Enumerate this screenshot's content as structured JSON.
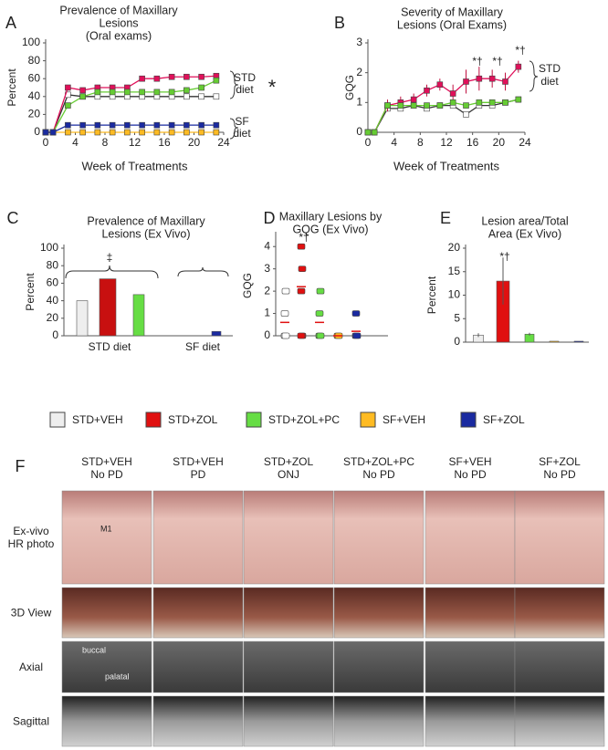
{
  "chart_data": [
    {
      "type": "line",
      "panel": "A",
      "title": [
        "Prevalence of Maxillary",
        "Lesions",
        "(Oral exams)"
      ],
      "xlabel": "Week of Treatments",
      "ylabel": "Percent",
      "x": [
        0,
        1,
        3,
        5,
        7,
        9,
        11,
        13,
        15,
        17,
        19,
        21,
        23
      ],
      "xlim": [
        0,
        24
      ],
      "xticks": [
        0,
        4,
        8,
        12,
        16,
        20,
        24
      ],
      "ylim": [
        0,
        100
      ],
      "yticks": [
        0,
        20,
        40,
        60,
        80,
        100
      ],
      "series": [
        {
          "color": "#ffffff",
          "values": [
            0,
            0,
            42,
            40,
            40,
            40,
            40,
            40,
            40,
            40,
            40,
            40,
            40
          ]
        },
        {
          "color": "#e0105a",
          "values": [
            0,
            0,
            50,
            47,
            50,
            50,
            50,
            60,
            60,
            62,
            62,
            62,
            63
          ]
        },
        {
          "color": "#66cc33",
          "values": [
            0,
            0,
            30,
            40,
            45,
            45,
            45,
            45,
            45,
            45,
            47,
            50,
            58
          ]
        },
        {
          "color": "#ffbb22",
          "values": [
            0,
            0,
            0,
            0,
            0,
            0,
            0,
            0,
            0,
            0,
            0,
            0,
            0
          ]
        },
        {
          "color": "#1a2aa0",
          "values": [
            0,
            0,
            8,
            8,
            8,
            8,
            8,
            8,
            8,
            8,
            8,
            8,
            8
          ]
        }
      ],
      "annotations": [
        "STD",
        "diet",
        "*",
        "SF",
        "diet"
      ]
    },
    {
      "type": "line",
      "panel": "B",
      "title": [
        "Severity of Maxillary",
        "Lesions (Oral Exams)"
      ],
      "xlabel": "Week of Treatments",
      "ylabel": "GQG",
      "x": [
        0,
        1,
        3,
        5,
        7,
        9,
        11,
        13,
        15,
        17,
        19,
        21,
        23
      ],
      "xlim": [
        0,
        24
      ],
      "xticks": [
        0,
        4,
        8,
        12,
        16,
        20,
        24
      ],
      "ylim": [
        0,
        3
      ],
      "yticks": [
        0,
        1,
        2,
        3
      ],
      "series": [
        {
          "color": "#ffffff",
          "values": [
            0,
            0,
            0.8,
            0.8,
            0.9,
            0.8,
            0.9,
            0.9,
            0.6,
            0.9,
            0.9,
            1.0,
            1.1
          ]
        },
        {
          "color": "#e0105a",
          "values": [
            0,
            0,
            0.9,
            1.0,
            1.1,
            1.4,
            1.6,
            1.3,
            1.7,
            1.8,
            1.8,
            1.7,
            2.2
          ],
          "errors": [
            0,
            0.1,
            0.2,
            0.2,
            0.2,
            0.2,
            0.2,
            0.3,
            0.4,
            0.4,
            0.3,
            0.3,
            0.2
          ]
        },
        {
          "color": "#66cc33",
          "values": [
            0,
            0,
            0.9,
            0.9,
            0.9,
            0.9,
            0.9,
            1.0,
            0.9,
            1.0,
            1.0,
            1.0,
            1.1
          ]
        }
      ],
      "annotations": [
        "*†",
        "*†",
        "*†",
        "STD",
        "diet"
      ]
    },
    {
      "type": "bar",
      "panel": "C",
      "title": [
        "Prevalence of Maxillary",
        "Lesions (Ex Vivo)"
      ],
      "ylabel": "Percent",
      "ylim": [
        0,
        100
      ],
      "yticks": [
        0,
        20,
        40,
        60,
        80,
        100
      ],
      "values": [
        40,
        65,
        47,
        0,
        5
      ],
      "colors": [
        "#eeeeee",
        "#c81010",
        "#66dd44",
        "#ffbb22",
        "#1a2aa0"
      ],
      "group_labels": [
        "STD diet",
        "SF diet"
      ],
      "annotations": [
        "‡"
      ]
    },
    {
      "type": "scatter",
      "panel": "D",
      "title": [
        "Maxillary Lesions by",
        "GQG (Ex Vivo)"
      ],
      "ylabel": "GQG",
      "ylim": [
        0,
        4.5
      ],
      "yticks": [
        0,
        1,
        2,
        3,
        4
      ],
      "series": [
        {
          "color": "#ffffff",
          "values": [
            0,
            0,
            1,
            2
          ]
        },
        {
          "color": "#e01010",
          "values": [
            4,
            3,
            2,
            0,
            0
          ]
        },
        {
          "color": "#66dd44",
          "values": [
            0,
            0,
            1,
            2
          ]
        },
        {
          "color": "#ffbb22",
          "values": [
            0,
            0
          ]
        },
        {
          "color": "#1a2aa0",
          "values": [
            0,
            0,
            1
          ]
        }
      ],
      "means": [
        0.6,
        2.2,
        0.6,
        0,
        0.2
      ],
      "annotations": [
        "*†"
      ]
    },
    {
      "type": "bar",
      "panel": "E",
      "title": [
        "Lesion area/Total",
        "Area (Ex Vivo)"
      ],
      "ylabel": "Percent",
      "ylim": [
        0,
        20
      ],
      "yticks": [
        0,
        5,
        10,
        15,
        20
      ],
      "values": [
        1.5,
        13,
        1.7,
        0.2,
        0.2
      ],
      "errors": [
        0.4,
        5,
        0.3,
        0,
        0
      ],
      "colors": [
        "#eeeeee",
        "#e01010",
        "#66dd44",
        "#ffbb22",
        "#1a2aa0"
      ],
      "annotations": [
        "*†"
      ]
    }
  ],
  "legend": {
    "entries": [
      {
        "name": "STD+VEH",
        "color": "#eeeeee"
      },
      {
        "name": "STD+ZOL",
        "color": "#e01010"
      },
      {
        "name": "STD+ZOL+PC",
        "color": "#66dd44"
      },
      {
        "name": "SF+VEH",
        "color": "#ffbb22"
      },
      {
        "name": "SF+ZOL",
        "color": "#1a2aa0"
      }
    ]
  },
  "panel_f": {
    "letter": "F",
    "columns": [
      [
        "STD+VEH",
        "No PD"
      ],
      [
        "STD+VEH",
        "PD"
      ],
      [
        "STD+ZOL",
        "ONJ"
      ],
      [
        "STD+ZOL+PC",
        "No PD"
      ],
      [
        "SF+VEH",
        "No PD"
      ],
      [
        "SF+ZOL",
        "No PD"
      ]
    ],
    "rows": [
      [
        "Ex-vivo",
        "HR photo"
      ],
      [
        "3D View"
      ],
      [
        "Axial"
      ],
      [
        "Sagittal"
      ]
    ],
    "image_labels": [
      "M1",
      "buccal",
      "palatal"
    ]
  }
}
